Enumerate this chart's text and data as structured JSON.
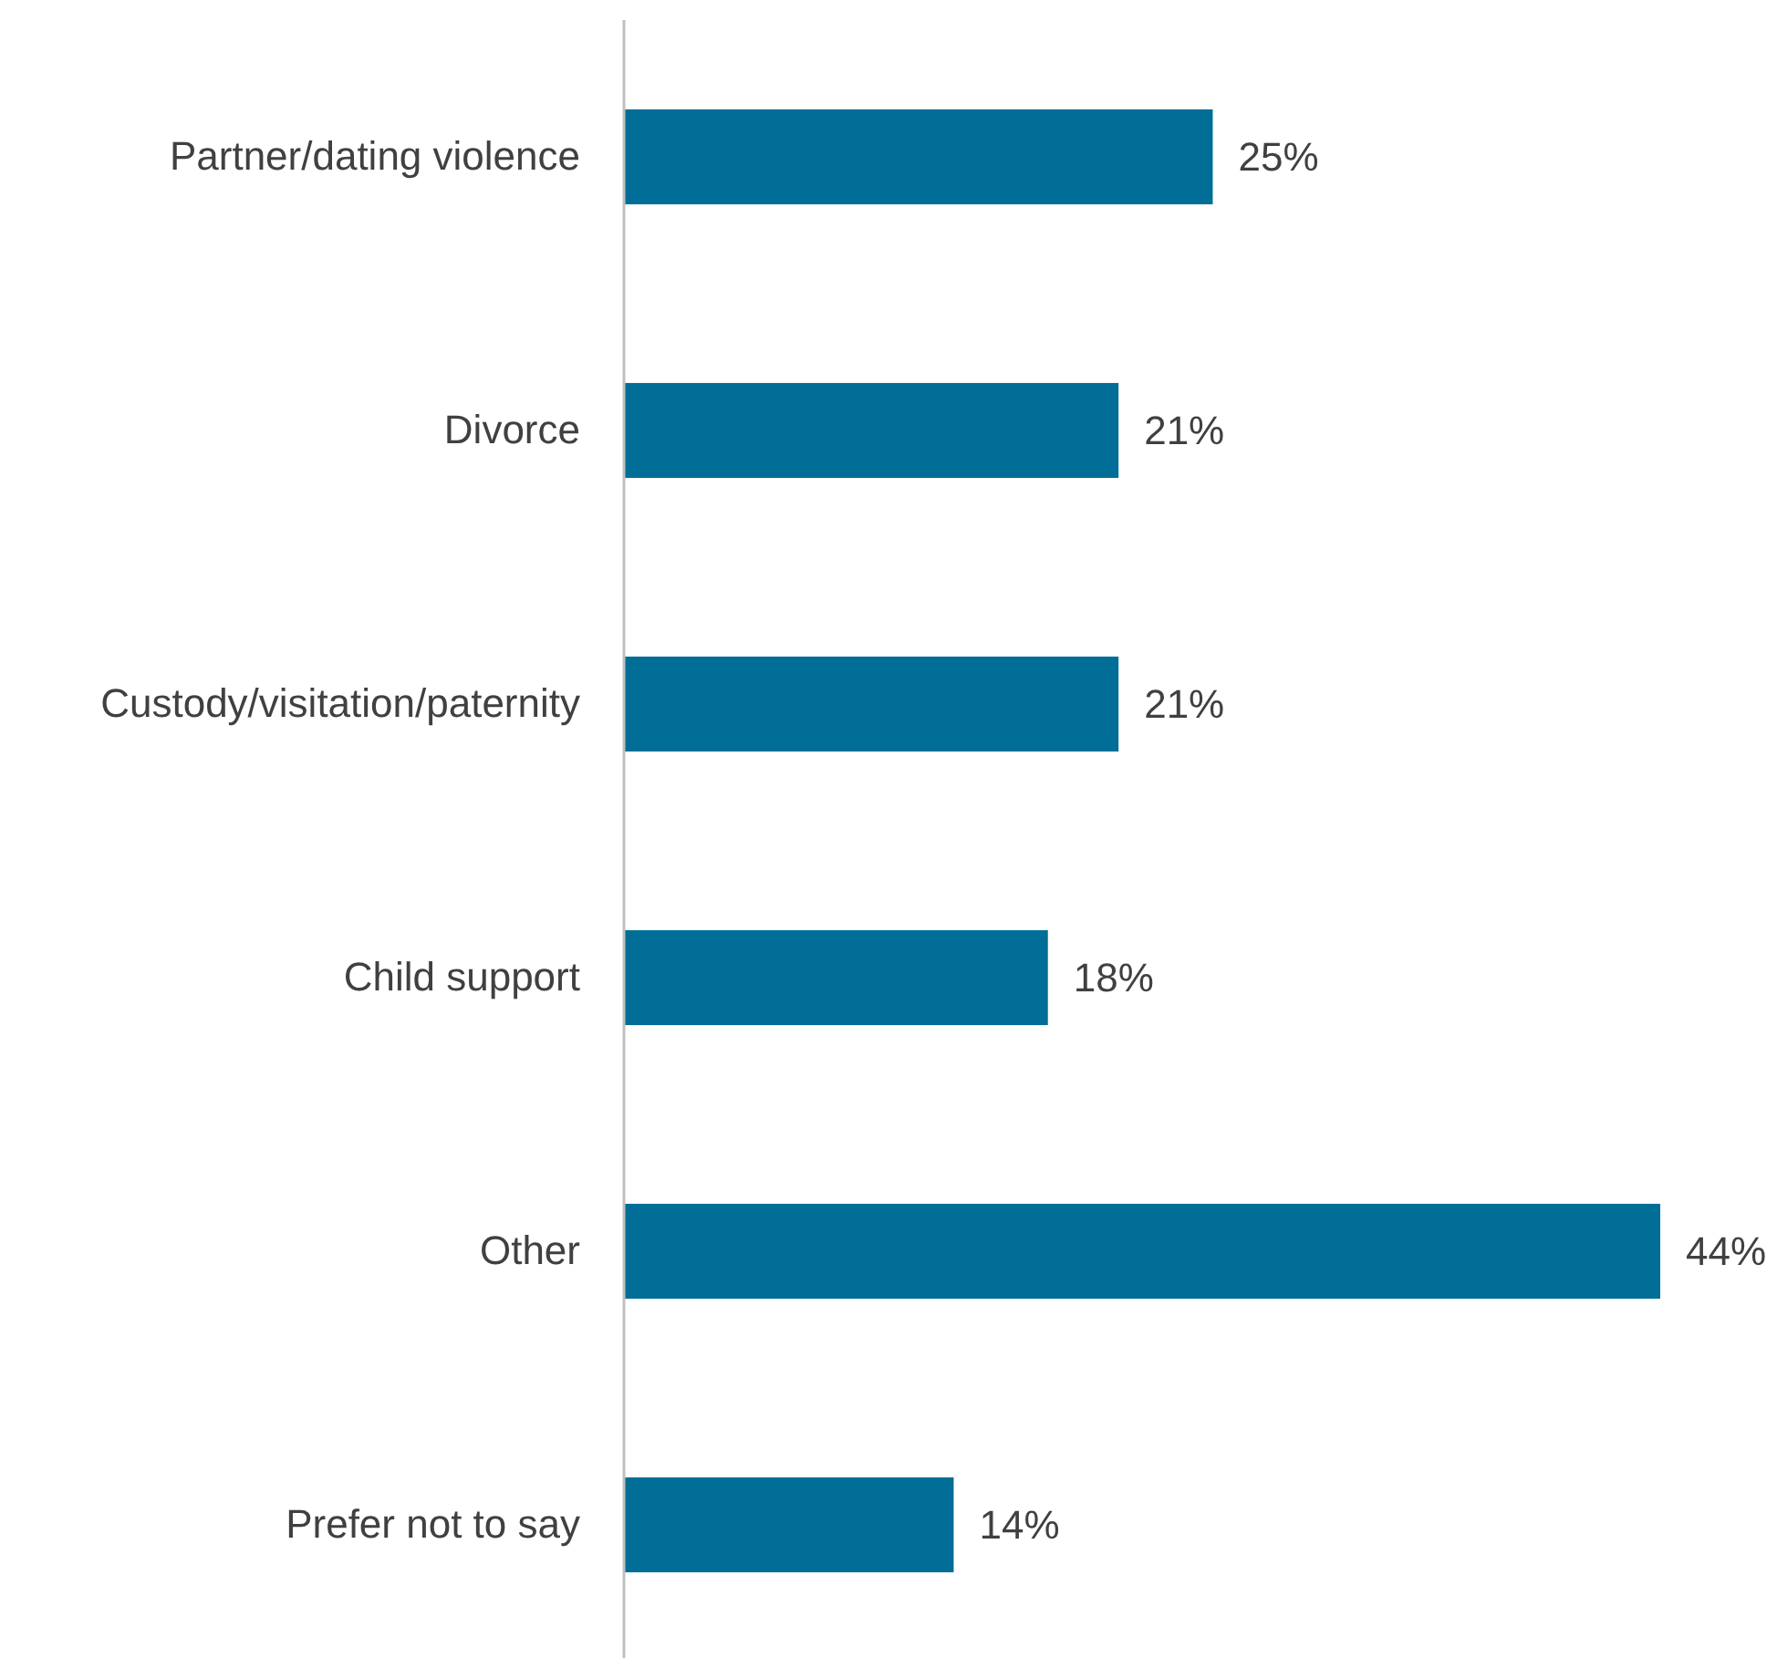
{
  "chart_data": {
    "type": "bar",
    "orientation": "horizontal",
    "categories": [
      "Partner/dating violence",
      "Divorce",
      "Custody/visitation/paternity",
      "Child support",
      "Other",
      "Prefer not to say"
    ],
    "values": [
      25,
      21,
      21,
      18,
      44,
      14
    ],
    "color": "#006e96",
    "value_labels": [
      "25%",
      "21%",
      "21%",
      "18%",
      "44%",
      "14%"
    ]
  }
}
